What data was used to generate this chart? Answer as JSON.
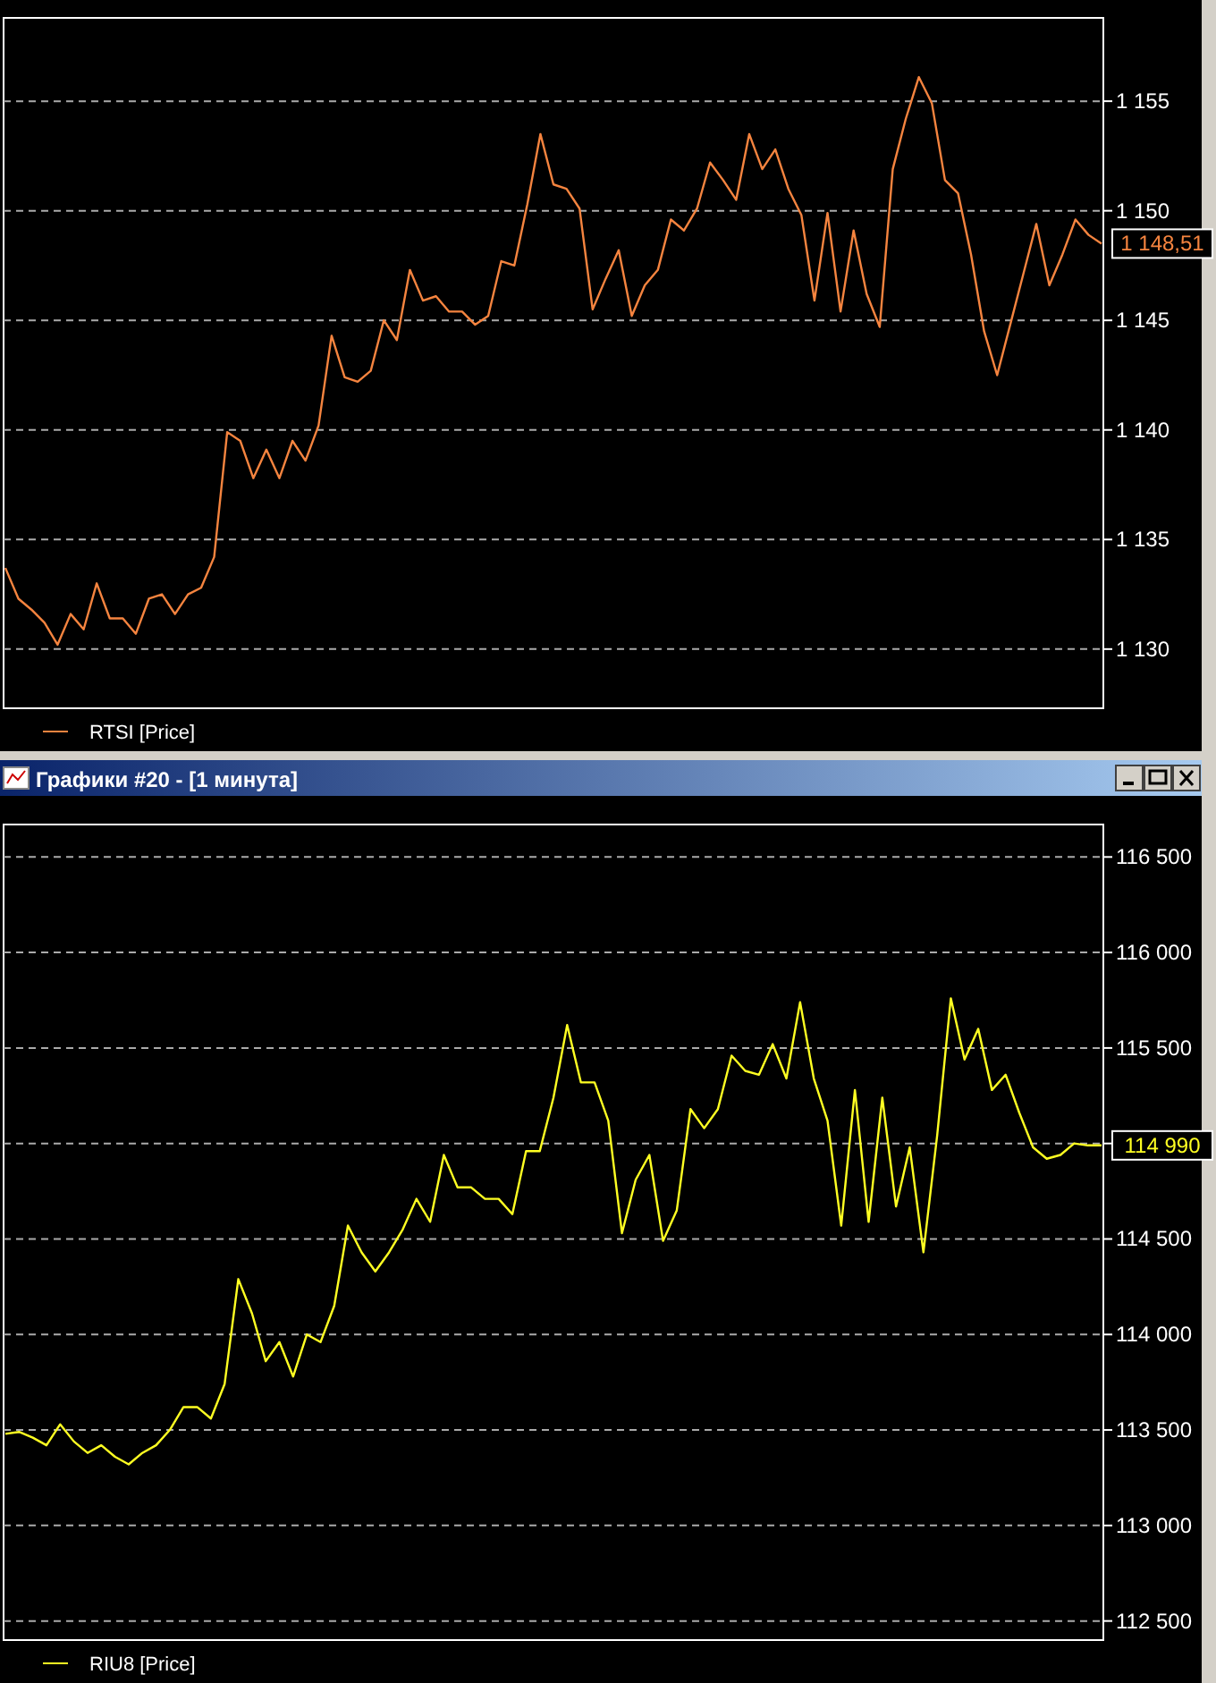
{
  "chart_data": [
    {
      "type": "line",
      "categories": [
        null,
        null,
        null,
        null,
        null,
        null,
        null,
        null,
        null,
        null,
        null,
        null,
        null,
        null,
        null,
        null,
        null,
        null,
        null,
        null,
        null,
        null,
        null,
        null,
        null,
        null,
        null,
        null,
        null,
        null,
        null,
        null,
        null,
        null,
        null,
        null,
        null,
        null,
        null,
        null,
        null,
        null,
        null,
        null,
        null,
        null,
        null,
        null,
        null,
        null,
        null,
        null,
        null,
        null,
        null,
        null,
        null,
        null,
        null,
        null,
        null,
        null,
        null,
        null,
        null,
        null,
        null,
        null,
        null,
        null,
        null,
        null,
        null,
        null,
        null,
        null,
        null,
        null,
        null,
        null,
        null,
        null,
        null,
        null,
        null
      ],
      "series": [
        {
          "name": "RTSI [Price]",
          "color": "#f5843f",
          "values": [
            1133.7,
            1132.3,
            1131.8,
            1131.2,
            1130.2,
            1131.6,
            1130.9,
            1133.0,
            1131.4,
            1131.4,
            1130.7,
            1132.3,
            1132.5,
            1131.6,
            1132.5,
            1132.8,
            1134.2,
            1139.9,
            1139.5,
            1137.8,
            1139.1,
            1137.8,
            1139.5,
            1138.6,
            1140.2,
            1144.3,
            1142.4,
            1142.2,
            1142.7,
            1145.0,
            1144.1,
            1147.3,
            1145.9,
            1146.1,
            1145.4,
            1145.4,
            1144.8,
            1145.2,
            1147.7,
            1147.5,
            1150.3,
            1153.5,
            1151.2,
            1151.0,
            1150.1,
            1145.5,
            1146.9,
            1148.2,
            1145.2,
            1146.6,
            1147.3,
            1149.6,
            1149.1,
            1150.1,
            1152.2,
            1151.4,
            1150.5,
            1153.5,
            1151.9,
            1152.8,
            1151.0,
            1149.8,
            1145.9,
            1149.9,
            1145.4,
            1149.1,
            1146.2,
            1144.7,
            1151.9,
            1154.2,
            1156.1,
            1154.9,
            1151.4,
            1150.8,
            1148.0,
            1144.5,
            1142.5,
            1144.8,
            1147.1,
            1149.4,
            1146.6,
            1148.0,
            1149.6,
            1148.9,
            1148.5
          ]
        }
      ],
      "ylim": [
        1127.3,
        1158.8
      ],
      "yticks": [
        {
          "value": 1130,
          "label": "1 130"
        },
        {
          "value": 1135,
          "label": "1 135"
        },
        {
          "value": 1140,
          "label": "1 140"
        },
        {
          "value": 1145,
          "label": "1 145"
        },
        {
          "value": 1150,
          "label": "1 150"
        },
        {
          "value": 1155,
          "label": "1 155"
        }
      ],
      "grid": "y",
      "legend": "bottom left",
      "tick_labels": "y",
      "line_style": "solid",
      "annotations": [
        "1 148,51"
      ]
    },
    {
      "type": "line",
      "title": "Графики #20 - [1 минута]",
      "categories": [
        null,
        null,
        null,
        null,
        null,
        null,
        null,
        null,
        null,
        null,
        null,
        null,
        null,
        null,
        null,
        null,
        null,
        null,
        null,
        null,
        null,
        null,
        null,
        null,
        null,
        null,
        null,
        null,
        null,
        null,
        null,
        null,
        null,
        null,
        null,
        null,
        null,
        null,
        null,
        null,
        null,
        null,
        null,
        null,
        null,
        null,
        null,
        null,
        null,
        null,
        null,
        null,
        null,
        null,
        null,
        null,
        null,
        null,
        null,
        null,
        null,
        null,
        null,
        null,
        null,
        null,
        null,
        null,
        null,
        null,
        null,
        null,
        null,
        null,
        null,
        null,
        null,
        null,
        null,
        null,
        null
      ],
      "series": [
        {
          "name": "RIU8 [Price]",
          "color": "#ffff22",
          "values": [
            113480,
            113490,
            113460,
            113420,
            113530,
            113440,
            113380,
            113420,
            113360,
            113320,
            113380,
            113420,
            113500,
            113620,
            113620,
            113560,
            113740,
            114290,
            114110,
            113860,
            113960,
            113780,
            114000,
            113960,
            114150,
            114570,
            114430,
            114330,
            114430,
            114550,
            114710,
            114590,
            114940,
            114770,
            114770,
            114710,
            114710,
            114630,
            114960,
            114960,
            115240,
            115620,
            115320,
            115320,
            115120,
            114530,
            114810,
            114940,
            114490,
            114650,
            115180,
            115080,
            115180,
            115460,
            115380,
            115360,
            115520,
            115340,
            115740,
            115340,
            115120,
            114570,
            115280,
            114590,
            115240,
            114670,
            114980,
            114430,
            115040,
            115760,
            115440,
            115600,
            115280,
            115360,
            115160,
            114980,
            114920,
            114940,
            115000,
            114990,
            114990
          ]
        }
      ],
      "ylim": [
        112400,
        116670
      ],
      "yticks": [
        {
          "value": 112500,
          "label": "112 500"
        },
        {
          "value": 113000,
          "label": "113 000"
        },
        {
          "value": 113500,
          "label": "113 500"
        },
        {
          "value": 114000,
          "label": "114 000"
        },
        {
          "value": 114500,
          "label": "114 500"
        },
        {
          "value": 115000,
          "label": null
        },
        {
          "value": 115500,
          "label": "115 500"
        },
        {
          "value": 116000,
          "label": "116 000"
        },
        {
          "value": 116500,
          "label": "116 500"
        }
      ],
      "grid": "y",
      "legend": "bottom left",
      "tick_labels": "y",
      "line_style": "solid",
      "annotations": [
        "114 990"
      ]
    }
  ]
}
